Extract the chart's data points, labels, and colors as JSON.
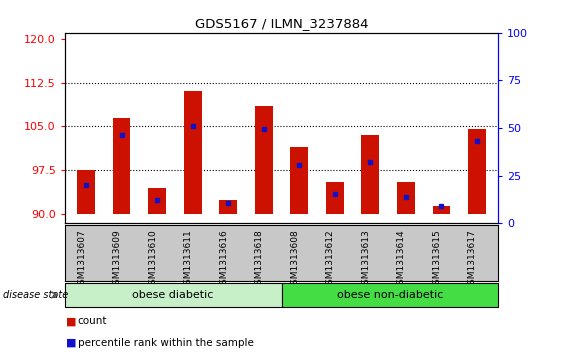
{
  "title": "GDS5167 / ILMN_3237884",
  "samples": [
    "GSM1313607",
    "GSM1313609",
    "GSM1313610",
    "GSM1313611",
    "GSM1313616",
    "GSM1313618",
    "GSM1313608",
    "GSM1313612",
    "GSM1313613",
    "GSM1313614",
    "GSM1313615",
    "GSM1313617"
  ],
  "bar_tops": [
    97.5,
    106.5,
    94.5,
    111.0,
    92.5,
    108.5,
    101.5,
    95.5,
    103.5,
    95.5,
    91.5,
    104.5
  ],
  "blue_vals": [
    95.0,
    103.5,
    92.5,
    105.0,
    92.0,
    104.5,
    98.5,
    93.5,
    99.0,
    93.0,
    91.5,
    102.5
  ],
  "bar_base": 90,
  "ylim_left": [
    88.5,
    121
  ],
  "ylim_right": [
    0,
    100
  ],
  "yticks_left": [
    90,
    97.5,
    105,
    112.5,
    120
  ],
  "yticks_right": [
    0,
    25,
    50,
    75,
    100
  ],
  "bar_color": "#CC1100",
  "blue_color": "#1111CC",
  "group1_label": "obese diabetic",
  "group2_label": "obese non-diabetic",
  "group1_count": 6,
  "group2_count": 6,
  "disease_state_label": "disease state",
  "legend_count": "count",
  "legend_percentile": "percentile rank within the sample",
  "ticklabel_bg": "#C8C8C8",
  "group_bg1": "#C8F0C8",
  "group_bg2": "#44DD44",
  "plot_bg": "#FFFFFF",
  "bar_width": 0.5
}
